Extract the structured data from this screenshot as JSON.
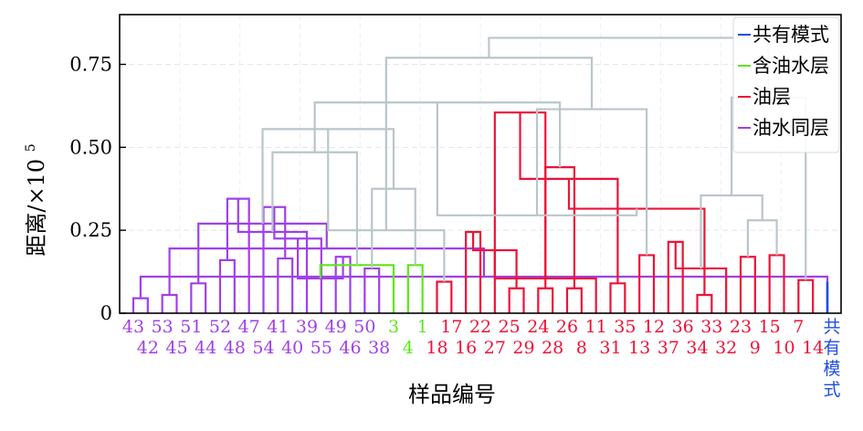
{
  "chart_data": {
    "type": "dendrogram",
    "xlabel": "样品编号",
    "ylabel": "距离/×10",
    "ylabel_sup": "5",
    "ylim": [
      0,
      0.9
    ],
    "yticks": [
      {
        "value": 0,
        "label": "0"
      },
      {
        "value": 0.25,
        "label": "0.25"
      },
      {
        "value": 0.5,
        "label": "0.50"
      },
      {
        "value": 0.75,
        "label": "0.75"
      }
    ],
    "grid": true,
    "legend_position": "top-right",
    "colors": {
      "共有模式": "#1f4fe0",
      "含油水层": "#5ee61a",
      "油层": "#ee1238",
      "油水同层": "#a040e8",
      "link": "#b9c6ca"
    },
    "legend": [
      {
        "name": "共有模式",
        "color": "#1f4fe0"
      },
      {
        "name": "含油水层",
        "color": "#5ee61a"
      },
      {
        "name": "油层",
        "color": "#ee1238"
      },
      {
        "name": "油水同层",
        "color": "#a040e8"
      }
    ],
    "leaves": [
      {
        "label": "43",
        "group": "油水同层"
      },
      {
        "label": "42",
        "group": "油水同层"
      },
      {
        "label": "53",
        "group": "油水同层"
      },
      {
        "label": "45",
        "group": "油水同层"
      },
      {
        "label": "51",
        "group": "油水同层"
      },
      {
        "label": "44",
        "group": "油水同层"
      },
      {
        "label": "52",
        "group": "油水同层"
      },
      {
        "label": "48",
        "group": "油水同层"
      },
      {
        "label": "47",
        "group": "油水同层"
      },
      {
        "label": "54",
        "group": "油水同层"
      },
      {
        "label": "41",
        "group": "油水同层"
      },
      {
        "label": "40",
        "group": "油水同层"
      },
      {
        "label": "39",
        "group": "油水同层"
      },
      {
        "label": "55",
        "group": "油水同层"
      },
      {
        "label": "49",
        "group": "油水同层"
      },
      {
        "label": "46",
        "group": "油水同层"
      },
      {
        "label": "50",
        "group": "油水同层"
      },
      {
        "label": "38",
        "group": "油水同层"
      },
      {
        "label": "3",
        "group": "含油水层"
      },
      {
        "label": "4",
        "group": "含油水层"
      },
      {
        "label": "1",
        "group": "含油水层"
      },
      {
        "label": "18",
        "group": "油层"
      },
      {
        "label": "17",
        "group": "油层"
      },
      {
        "label": "16",
        "group": "油层"
      },
      {
        "label": "22",
        "group": "油层"
      },
      {
        "label": "27",
        "group": "油层"
      },
      {
        "label": "25",
        "group": "油层"
      },
      {
        "label": "29",
        "group": "油层"
      },
      {
        "label": "24",
        "group": "油层"
      },
      {
        "label": "28",
        "group": "油层"
      },
      {
        "label": "26",
        "group": "油层"
      },
      {
        "label": "8",
        "group": "油层"
      },
      {
        "label": "11",
        "group": "油层"
      },
      {
        "label": "31",
        "group": "油层"
      },
      {
        "label": "35",
        "group": "油层"
      },
      {
        "label": "13",
        "group": "油层"
      },
      {
        "label": "12",
        "group": "油层"
      },
      {
        "label": "37",
        "group": "油层"
      },
      {
        "label": "36",
        "group": "油层"
      },
      {
        "label": "34",
        "group": "油层"
      },
      {
        "label": "33",
        "group": "油层"
      },
      {
        "label": "32",
        "group": "油层"
      },
      {
        "label": "23",
        "group": "油层"
      },
      {
        "label": "9",
        "group": "油层"
      },
      {
        "label": "15",
        "group": "油层"
      },
      {
        "label": "10",
        "group": "油层"
      },
      {
        "label": "7",
        "group": "油层"
      },
      {
        "label": "14",
        "group": "油层"
      },
      {
        "label": "共有模式",
        "group": "共有模式"
      }
    ],
    "merges": [
      {
        "a": 0,
        "b": 1,
        "h": 0.045,
        "group": "油水同层"
      },
      {
        "a": 2,
        "b": 3,
        "h": 0.055,
        "group": "油水同层"
      },
      {
        "a": 48,
        "b": 49,
        "h": 0.11,
        "group": "油水同层"
      },
      {
        "a": 4,
        "b": 5,
        "h": 0.09,
        "group": "油水同层"
      },
      {
        "a": 50,
        "b": 51,
        "h": 0.195,
        "group": "油水同层"
      },
      {
        "a": 6,
        "b": 7,
        "h": 0.16,
        "group": "油水同层"
      },
      {
        "a": 52,
        "b": 53,
        "h": 0.27,
        "group": "油水同层"
      },
      {
        "a": 8,
        "b": 54,
        "h": 0.345,
        "group": "油水同层"
      },
      {
        "a": 10,
        "b": 11,
        "h": 0.165,
        "group": "油水同层"
      },
      {
        "a": 12,
        "b": 56,
        "h": 0.245,
        "group": "油水同层"
      },
      {
        "a": 9,
        "b": 57,
        "h": 0.32,
        "group": "油水同层"
      },
      {
        "a": 14,
        "b": 15,
        "h": 0.17,
        "group": "油水同层"
      },
      {
        "a": 13,
        "b": 59,
        "h": 0.225,
        "group": "油水同层"
      },
      {
        "a": 16,
        "b": 17,
        "h": 0.135,
        "group": "油水同层"
      },
      {
        "a": 60,
        "b": 61,
        "h": 0.105,
        "group": "油水同层"
      },
      {
        "a": 19,
        "b": 20,
        "h": 0.145,
        "group": "含油水层"
      },
      {
        "a": 18,
        "b": 63,
        "h": 0.145,
        "group": "含油水层"
      },
      {
        "a": 62,
        "b": 64,
        "h": 0.375,
        "group": "link"
      },
      {
        "a": 58,
        "b": 65,
        "h": 0.485,
        "group": "link"
      },
      {
        "a": 55,
        "b": 66,
        "h": 0.555,
        "group": "link"
      },
      {
        "a": 21,
        "b": 22,
        "h": 0.095,
        "group": "油层"
      },
      {
        "a": 23,
        "b": 24,
        "h": 0.245,
        "group": "油层"
      },
      {
        "a": 26,
        "b": 27,
        "h": 0.075,
        "group": "油层"
      },
      {
        "a": 28,
        "b": 29,
        "h": 0.075,
        "group": "油层"
      },
      {
        "a": 70,
        "b": 71,
        "h": 0.19,
        "group": "油层"
      },
      {
        "a": 30,
        "b": 31,
        "h": 0.075,
        "group": "油层"
      },
      {
        "a": 73,
        "b": 32,
        "h": 0.105,
        "group": "油层"
      },
      {
        "a": 72,
        "b": 74,
        "h": 0.44,
        "group": "油层"
      },
      {
        "a": 25,
        "b": 75,
        "h": 0.605,
        "group": "油层"
      },
      {
        "a": 33,
        "b": 34,
        "h": 0.09,
        "group": "油层"
      },
      {
        "a": 35,
        "b": 36,
        "h": 0.175,
        "group": "油层"
      },
      {
        "a": 77,
        "b": 78,
        "h": 0.405,
        "group": "油层"
      },
      {
        "a": 37,
        "b": 38,
        "h": 0.215,
        "group": "油层"
      },
      {
        "a": 39,
        "b": 40,
        "h": 0.055,
        "group": "油层"
      },
      {
        "a": 81,
        "b": 41,
        "h": 0.135,
        "group": "油层"
      },
      {
        "a": 80,
        "b": 82,
        "h": 0.315,
        "group": "油层"
      },
      {
        "a": 42,
        "b": 43,
        "h": 0.17,
        "group": "油层"
      },
      {
        "a": 44,
        "b": 45,
        "h": 0.175,
        "group": "油层"
      },
      {
        "a": 46,
        "b": 47,
        "h": 0.1,
        "group": "油层"
      },
      {
        "a": 68,
        "b": 69,
        "h": 0.25,
        "group": "link"
      },
      {
        "a": 67,
        "b": 76,
        "h": 0.635,
        "group": "link"
      },
      {
        "a": 85,
        "b": 86,
        "h": 0.28,
        "group": "link"
      },
      {
        "a": 84,
        "b": 89,
        "h": 0.295,
        "group": "link"
      },
      {
        "a": 83,
        "b": 90,
        "h": 0.355,
        "group": "link"
      },
      {
        "a": 79,
        "b": 91,
        "h": 0.615,
        "group": "link"
      },
      {
        "a": 92,
        "b": 87,
        "h": 0.65,
        "group": "link"
      },
      {
        "a": 88,
        "b": 93,
        "h": 0.77,
        "group": "link"
      },
      {
        "a": 94,
        "b": 95,
        "h": 0.83,
        "group": "link"
      }
    ]
  }
}
